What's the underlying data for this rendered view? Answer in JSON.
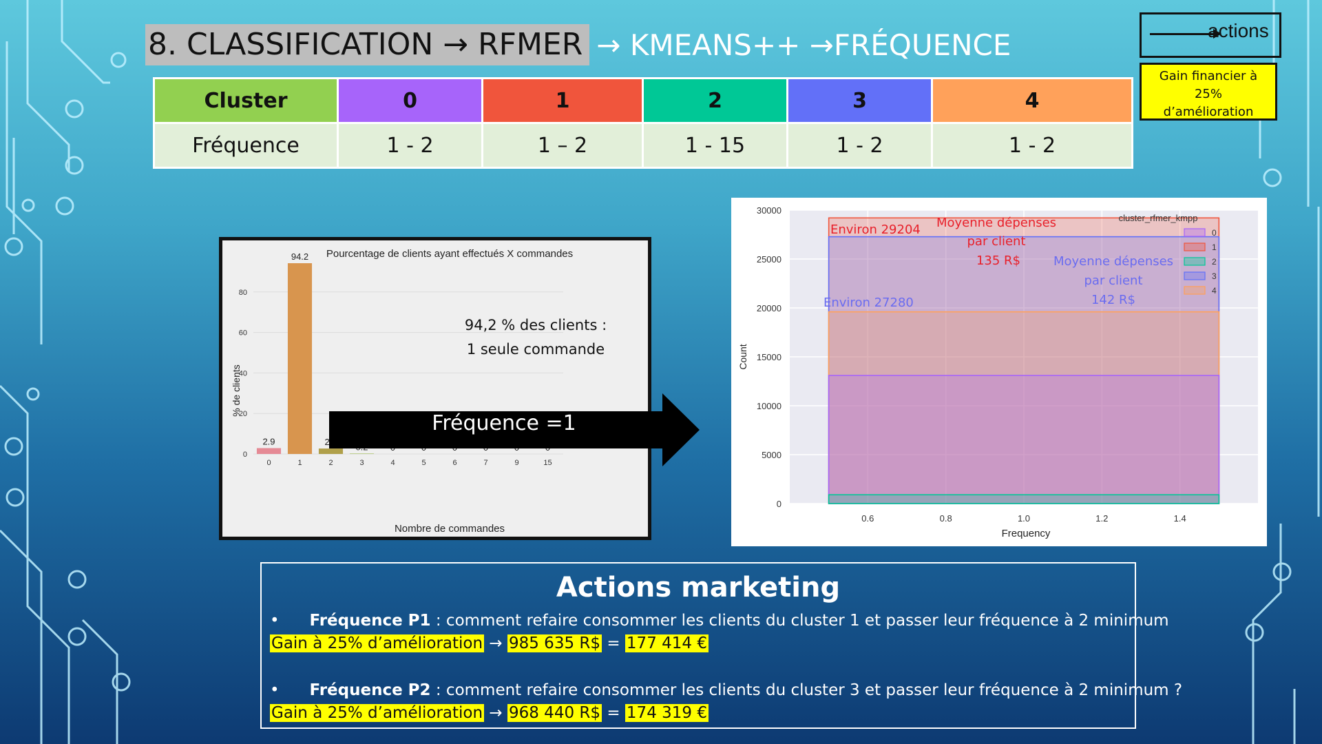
{
  "title": {
    "part1": "8. CLASSIFICATION → RFMER",
    "part2": "→ KMEANS++ →FRÉQUENCE"
  },
  "legend": {
    "label": "actions"
  },
  "gain_box": {
    "line1": "Gain financier à",
    "line2": "25%",
    "line3": "d’amélioration"
  },
  "table": {
    "header_label": "Cluster",
    "row_label": "Fréquence",
    "clusters": [
      {
        "id": "0",
        "freq": "1 - 2",
        "color": "#a764fa"
      },
      {
        "id": "1",
        "freq": "1 – 2",
        "color": "#f0553c"
      },
      {
        "id": "2",
        "freq": "1 - 15",
        "color": "#00c896"
      },
      {
        "id": "3",
        "freq": "1 - 2",
        "color": "#6270f8"
      },
      {
        "id": "4",
        "freq": "1 - 2",
        "color": "#ffa15a"
      }
    ],
    "header_color": "#92d050"
  },
  "chart_data": [
    {
      "type": "bar",
      "title": "Pourcentage de clients ayant effectués X commandes",
      "xlabel": "Nombre de commandes",
      "ylabel": "% de clients",
      "categories": [
        "0",
        "1",
        "2",
        "3",
        "4",
        "5",
        "6",
        "7",
        "9",
        "15"
      ],
      "values": [
        2.9,
        94.2,
        2.7,
        0.2,
        0,
        0,
        0,
        0,
        0,
        0
      ],
      "value_labels": [
        "2.9",
        "94.2",
        "2.7",
        "0.2",
        "0",
        "0",
        "0",
        "0",
        "0",
        "0"
      ],
      "bar_colors": [
        "#e58a95",
        "#d8954e",
        "#b0a04a",
        "#9cb84a",
        "#6fbf6a",
        "#5bbfa0",
        "#5bb8c8",
        "#6aa8de",
        "#9b8fe0",
        "#d88ad0"
      ],
      "yticks": [
        0,
        20,
        40,
        60,
        80
      ],
      "ylim": [
        0,
        100
      ],
      "annotation_line1": "94,2 % des clients :",
      "annotation_line2": "1 seule commande"
    },
    {
      "type": "area",
      "xlabel": "Frequency",
      "ylabel": "Count",
      "x_range": [
        0.5,
        1.5
      ],
      "xlim": [
        0.4,
        1.6
      ],
      "ylim": [
        0,
        30000
      ],
      "xticks": [
        "0.6",
        "0.8",
        "1.0",
        "1.2",
        "1.4"
      ],
      "yticks": [
        "0",
        "5000",
        "10000",
        "15000",
        "20000",
        "25000",
        "30000"
      ],
      "legend_title": "cluster_rfmer_kmpp",
      "legend_position": "top-right",
      "series": [
        {
          "name": "0",
          "value": 13100,
          "color": "#a764fa"
        },
        {
          "name": "1",
          "value": 29204,
          "color": "#f0553c"
        },
        {
          "name": "2",
          "value": 900,
          "color": "#00c896"
        },
        {
          "name": "3",
          "value": 27280,
          "color": "#6270f8"
        },
        {
          "name": "4",
          "value": 19600,
          "color": "#ffa15a"
        }
      ],
      "annotations": {
        "red_count": "Environ 29204",
        "red_mean_1": "Moyenne dépenses",
        "red_mean_2": "par client",
        "red_mean_3": "135 R$",
        "blue_count": "Environ 27280",
        "blue_mean_1": "Moyenne dépenses",
        "blue_mean_2": "par client",
        "blue_mean_3": "142 R$"
      }
    }
  ],
  "arrow_label": "Fréquence =1",
  "actions": {
    "title": "Actions marketing",
    "p1_bullet": "•",
    "p1_bold": "Fréquence P1",
    "p1_text": " : comment refaire consommer les clients du cluster 1 et passer leur fréquence à 2 minimum",
    "p1_gain": "Gain à 25% d’amélioration",
    "p1_arrow": "→",
    "p1_rs": "985 635 R$",
    "p1_eq": "=",
    "p1_eur": "177 414 €",
    "p2_bullet": "•",
    "p2_bold": "Fréquence P2",
    "p2_text": " : comment refaire consommer les clients du cluster 3 et passer leur fréquence à 2 minimum ?",
    "p2_gain": "Gain à 25% d’amélioration",
    "p2_arrow": "→",
    "p2_rs": "968 440 R$",
    "p2_eq": "=",
    "p2_eur": "174 319 €"
  }
}
